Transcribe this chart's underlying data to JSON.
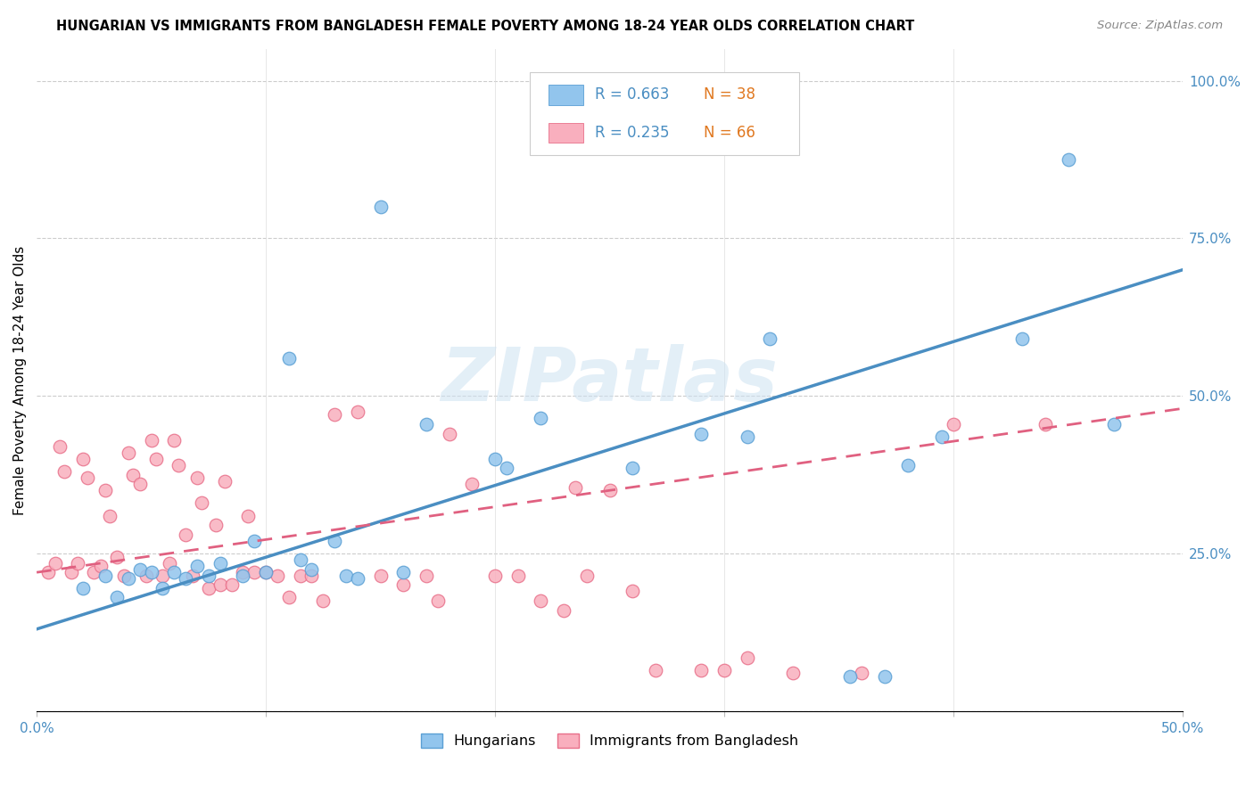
{
  "title": "HUNGARIAN VS IMMIGRANTS FROM BANGLADESH FEMALE POVERTY AMONG 18-24 YEAR OLDS CORRELATION CHART",
  "source": "Source: ZipAtlas.com",
  "ylabel": "Female Poverty Among 18-24 Year Olds",
  "xlim": [
    0.0,
    0.5
  ],
  "ylim": [
    0.0,
    1.05
  ],
  "y_tick_vals": [
    0.0,
    0.25,
    0.5,
    0.75,
    1.0
  ],
  "y_tick_labels": [
    "",
    "25.0%",
    "50.0%",
    "75.0%",
    "100.0%"
  ],
  "x_tick_vals": [
    0.0,
    0.1,
    0.2,
    0.3,
    0.4,
    0.5
  ],
  "x_tick_labels": [
    "0.0%",
    "",
    "",
    "",
    "",
    "50.0%"
  ],
  "blue_R": 0.663,
  "blue_N": 38,
  "pink_R": 0.235,
  "pink_N": 66,
  "blue_color": "#92C5ED",
  "pink_color": "#F9AFBE",
  "blue_edge_color": "#5A9FD4",
  "pink_edge_color": "#E8708A",
  "blue_line_color": "#4A8EC2",
  "pink_line_color": "#E06080",
  "watermark": "ZIPatlas",
  "blue_scatter_x": [
    0.02,
    0.03,
    0.035,
    0.04,
    0.045,
    0.05,
    0.055,
    0.06,
    0.065,
    0.07,
    0.075,
    0.08,
    0.09,
    0.095,
    0.1,
    0.11,
    0.115,
    0.12,
    0.13,
    0.135,
    0.14,
    0.15,
    0.16,
    0.17,
    0.2,
    0.205,
    0.22,
    0.26,
    0.29,
    0.31,
    0.32,
    0.355,
    0.37,
    0.38,
    0.395,
    0.43,
    0.45,
    0.47
  ],
  "blue_scatter_y": [
    0.195,
    0.215,
    0.18,
    0.21,
    0.225,
    0.22,
    0.195,
    0.22,
    0.21,
    0.23,
    0.215,
    0.235,
    0.215,
    0.27,
    0.22,
    0.56,
    0.24,
    0.225,
    0.27,
    0.215,
    0.21,
    0.8,
    0.22,
    0.455,
    0.4,
    0.385,
    0.465,
    0.385,
    0.44,
    0.435,
    0.59,
    0.055,
    0.055,
    0.39,
    0.435,
    0.59,
    0.875,
    0.455
  ],
  "pink_scatter_x": [
    0.005,
    0.008,
    0.01,
    0.012,
    0.015,
    0.018,
    0.02,
    0.022,
    0.025,
    0.028,
    0.03,
    0.032,
    0.035,
    0.038,
    0.04,
    0.042,
    0.045,
    0.048,
    0.05,
    0.052,
    0.055,
    0.058,
    0.06,
    0.062,
    0.065,
    0.068,
    0.07,
    0.072,
    0.075,
    0.078,
    0.08,
    0.082,
    0.085,
    0.09,
    0.092,
    0.095,
    0.1,
    0.105,
    0.11,
    0.115,
    0.12,
    0.125,
    0.13,
    0.14,
    0.15,
    0.16,
    0.17,
    0.175,
    0.18,
    0.19,
    0.2,
    0.21,
    0.22,
    0.23,
    0.235,
    0.24,
    0.25,
    0.26,
    0.27,
    0.29,
    0.3,
    0.31,
    0.33,
    0.36,
    0.4,
    0.44
  ],
  "pink_scatter_y": [
    0.22,
    0.235,
    0.42,
    0.38,
    0.22,
    0.235,
    0.4,
    0.37,
    0.22,
    0.23,
    0.35,
    0.31,
    0.245,
    0.215,
    0.41,
    0.375,
    0.36,
    0.215,
    0.43,
    0.4,
    0.215,
    0.235,
    0.43,
    0.39,
    0.28,
    0.215,
    0.37,
    0.33,
    0.195,
    0.295,
    0.2,
    0.365,
    0.2,
    0.22,
    0.31,
    0.22,
    0.22,
    0.215,
    0.18,
    0.215,
    0.215,
    0.175,
    0.47,
    0.475,
    0.215,
    0.2,
    0.215,
    0.175,
    0.44,
    0.36,
    0.215,
    0.215,
    0.175,
    0.16,
    0.355,
    0.215,
    0.35,
    0.19,
    0.065,
    0.065,
    0.065,
    0.085,
    0.06,
    0.06,
    0.455,
    0.455
  ]
}
